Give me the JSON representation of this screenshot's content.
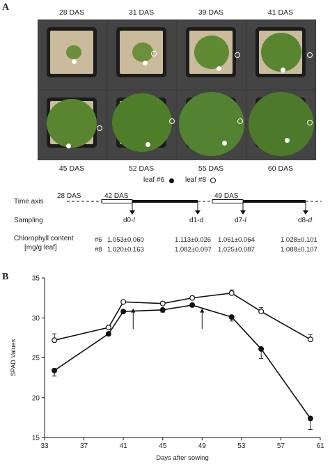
{
  "panel_a": {
    "letter": "A",
    "top_labels": [
      "28 DAS",
      "31 DAS",
      "39 DAS",
      "41 DAS"
    ],
    "bottom_labels": [
      "45 DAS",
      "52 DAS",
      "55 DAS",
      "60 DAS"
    ],
    "legend": {
      "leaf6": "leaf #6",
      "leaf8": "leaf #8"
    },
    "timeline": {
      "time_axis_label": "Time axis",
      "sampling_label": "Sampling",
      "chlorophyll_label": "Chlorophyll content",
      "unit_label": "[mg/g leaf]",
      "das_marks": [
        "28 DAS",
        "42 DAS",
        "49 DAS"
      ],
      "samples": [
        {
          "prefix": "d0-",
          "suffix": "l"
        },
        {
          "prefix": "d1-",
          "suffix": "d"
        },
        {
          "prefix": "d7-",
          "suffix": "l"
        },
        {
          "prefix": "d8-",
          "suffix": "d"
        }
      ],
      "rows": [
        {
          "leaf": "#6",
          "values": [
            "1.053±0.060",
            "1.113±0.026",
            "1.061±0.064",
            "1.028±0.101"
          ]
        },
        {
          "leaf": "#8",
          "values": [
            "1.020±0.163",
            "1.082±0.097",
            "1.025±0.087",
            "1.088±0.107"
          ]
        }
      ]
    }
  },
  "panel_b": {
    "letter": "B",
    "colors": {
      "line": "#111111",
      "open_fill": "#ffffff",
      "filled": "#111111"
    }
  },
  "chart_data": {
    "type": "line",
    "xlabel": "Days after sowing",
    "ylabel": "SPAD Values",
    "xlim": [
      33,
      61
    ],
    "ylim": [
      15,
      35
    ],
    "xticks": [
      33,
      37,
      41,
      45,
      49,
      53,
      57,
      61
    ],
    "yticks": [
      15,
      20,
      25,
      30,
      35
    ],
    "annotations": [
      {
        "type": "arrow",
        "x": 42
      },
      {
        "type": "arrow",
        "x": 49
      }
    ],
    "series": [
      {
        "marker": "open-circle",
        "x": [
          34,
          39.5,
          41,
          45,
          48,
          52,
          55,
          60
        ],
        "y": [
          27.2,
          28.8,
          32.0,
          31.8,
          32.5,
          33.1,
          30.8,
          27.3
        ],
        "err": [
          0.8,
          0.2,
          0.2,
          0.2,
          0.2,
          0.4,
          0.5,
          0.6
        ]
      },
      {
        "marker": "filled-circle",
        "x": [
          34,
          39.5,
          41,
          45,
          48,
          52,
          55,
          60
        ],
        "y": [
          23.4,
          28.0,
          30.8,
          31.0,
          31.6,
          30.1,
          26.1,
          17.4
        ],
        "err": [
          0.7,
          0.2,
          0.2,
          0.3,
          0.2,
          0.5,
          1.2,
          1.4
        ]
      }
    ]
  }
}
